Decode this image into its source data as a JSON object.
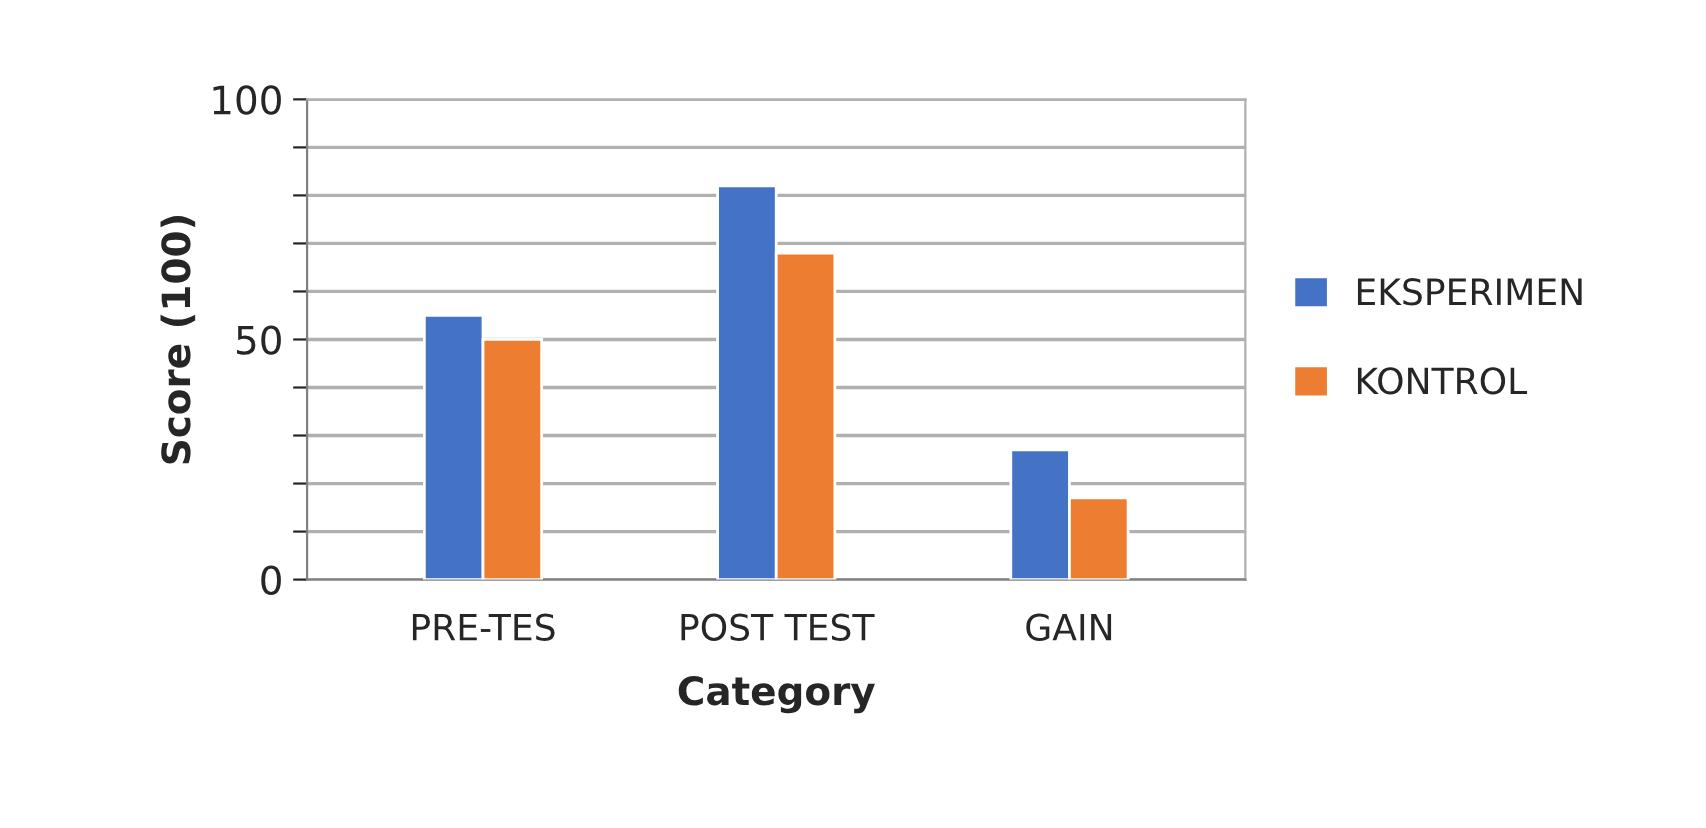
{
  "chart_data": {
    "type": "bar",
    "xlabel": "Category",
    "ylabel": "Score (100)",
    "categories": [
      "PRE-TES",
      "POST TEST",
      "GAIN"
    ],
    "series": [
      {
        "name": "EKSPERIMEN",
        "color": "#4472c4",
        "values": [
          55,
          82,
          27
        ]
      },
      {
        "name": "KONTROL",
        "color": "#ed7d31",
        "values": [
          50,
          68,
          17
        ]
      }
    ],
    "ylim": [
      0,
      100
    ],
    "yticks": [
      0,
      {
        "value": 10,
        "label": null
      },
      {
        "value": 20,
        "label": null
      },
      {
        "value": 30,
        "label": null
      },
      {
        "value": 40,
        "label": null
      },
      50,
      {
        "value": 60,
        "label": null
      },
      {
        "value": 70,
        "label": null
      },
      {
        "value": 80,
        "label": null
      },
      {
        "value": 90,
        "label": null
      },
      100
    ],
    "grid": "y",
    "legend": "right"
  }
}
